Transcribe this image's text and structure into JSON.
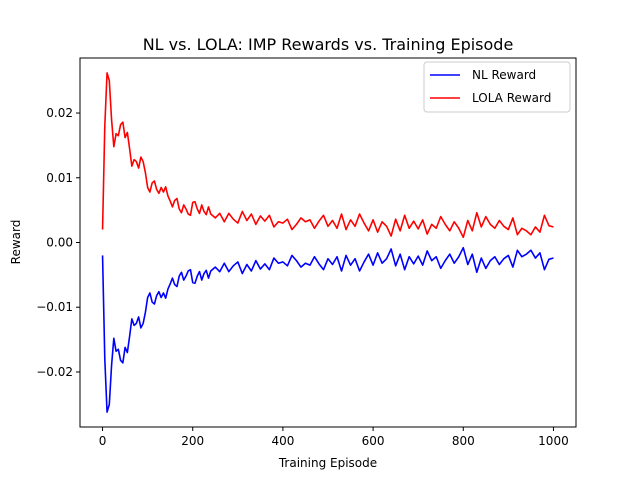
{
  "chart_data": {
    "type": "line",
    "title": "NL vs. LOLA: IMP Rewards vs. Training Episode",
    "xlabel": "Training Episode",
    "ylabel": "Reward",
    "xlim": [
      -50,
      1050
    ],
    "ylim": [
      -0.0285,
      0.0285
    ],
    "xticks": [
      0,
      200,
      400,
      600,
      800,
      1000
    ],
    "yticks": [
      -0.02,
      -0.01,
      0.0,
      0.01,
      0.02
    ],
    "ytick_labels": [
      "−0.02",
      "−0.01",
      "0.00",
      "0.01",
      "0.02"
    ],
    "grid": false,
    "legend": "top-right",
    "series": [
      {
        "name": "NL Reward",
        "color": "#0000ff",
        "x": [
          0,
          5,
          10,
          15,
          20,
          25,
          30,
          35,
          40,
          45,
          50,
          55,
          60,
          65,
          70,
          75,
          80,
          85,
          90,
          95,
          100,
          105,
          110,
          115,
          120,
          125,
          130,
          135,
          140,
          145,
          150,
          155,
          160,
          165,
          170,
          175,
          180,
          185,
          190,
          195,
          200,
          205,
          210,
          215,
          220,
          225,
          230,
          235,
          240,
          250,
          260,
          270,
          280,
          290,
          300,
          310,
          320,
          330,
          340,
          350,
          360,
          370,
          380,
          390,
          400,
          410,
          420,
          430,
          440,
          450,
          460,
          470,
          480,
          490,
          500,
          510,
          520,
          530,
          540,
          550,
          560,
          570,
          580,
          590,
          600,
          610,
          620,
          630,
          640,
          650,
          660,
          670,
          680,
          690,
          700,
          710,
          720,
          730,
          740,
          750,
          760,
          770,
          780,
          790,
          800,
          810,
          820,
          830,
          840,
          850,
          860,
          870,
          880,
          890,
          900,
          910,
          920,
          930,
          940,
          950,
          960,
          970,
          980,
          990,
          1000
        ],
        "values": [
          -0.002,
          -0.018,
          -0.0262,
          -0.025,
          -0.019,
          -0.0148,
          -0.0168,
          -0.0165,
          -0.0182,
          -0.0186,
          -0.0162,
          -0.017,
          -0.0145,
          -0.0118,
          -0.0128,
          -0.0125,
          -0.0115,
          -0.0132,
          -0.0125,
          -0.0108,
          -0.0085,
          -0.0078,
          -0.0092,
          -0.0095,
          -0.0082,
          -0.0076,
          -0.0085,
          -0.0078,
          -0.0086,
          -0.0072,
          -0.0064,
          -0.0055,
          -0.0065,
          -0.0068,
          -0.0052,
          -0.0046,
          -0.0058,
          -0.0052,
          -0.0044,
          -0.0042,
          -0.0062,
          -0.0063,
          -0.0052,
          -0.0045,
          -0.0058,
          -0.0048,
          -0.0043,
          -0.0055,
          -0.0044,
          -0.0038,
          -0.0045,
          -0.0032,
          -0.0045,
          -0.0036,
          -0.003,
          -0.0048,
          -0.0034,
          -0.0044,
          -0.0028,
          -0.0041,
          -0.0033,
          -0.0042,
          -0.0024,
          -0.0032,
          -0.003,
          -0.0036,
          -0.002,
          -0.0028,
          -0.0038,
          -0.0032,
          -0.0035,
          -0.0022,
          -0.0033,
          -0.0042,
          -0.0025,
          -0.0034,
          -0.0022,
          -0.0044,
          -0.002,
          -0.0035,
          -0.0025,
          -0.0044,
          -0.003,
          -0.0018,
          -0.0035,
          -0.0016,
          -0.0032,
          -0.0025,
          -0.001,
          -0.0036,
          -0.0018,
          -0.0042,
          -0.0022,
          -0.0033,
          -0.0021,
          -0.0035,
          -0.0013,
          -0.0028,
          -0.0022,
          -0.004,
          -0.0028,
          -0.0018,
          -0.0032,
          -0.0022,
          -0.0008,
          -0.0034,
          -0.0018,
          -0.0046,
          -0.0024,
          -0.004,
          -0.0028,
          -0.0022,
          -0.0034,
          -0.0025,
          -0.002,
          -0.0038,
          -0.0012,
          -0.0022,
          -0.0018,
          -0.0012,
          -0.0024,
          -0.0016,
          -0.0042,
          -0.0026,
          -0.0024
        ]
      },
      {
        "name": "LOLA Reward",
        "color": "#ff0000",
        "x": [
          0,
          5,
          10,
          15,
          20,
          25,
          30,
          35,
          40,
          45,
          50,
          55,
          60,
          65,
          70,
          75,
          80,
          85,
          90,
          95,
          100,
          105,
          110,
          115,
          120,
          125,
          130,
          135,
          140,
          145,
          150,
          155,
          160,
          165,
          170,
          175,
          180,
          185,
          190,
          195,
          200,
          205,
          210,
          215,
          220,
          225,
          230,
          235,
          240,
          250,
          260,
          270,
          280,
          290,
          300,
          310,
          320,
          330,
          340,
          350,
          360,
          370,
          380,
          390,
          400,
          410,
          420,
          430,
          440,
          450,
          460,
          470,
          480,
          490,
          500,
          510,
          520,
          530,
          540,
          550,
          560,
          570,
          580,
          590,
          600,
          610,
          620,
          630,
          640,
          650,
          660,
          670,
          680,
          690,
          700,
          710,
          720,
          730,
          740,
          750,
          760,
          770,
          780,
          790,
          800,
          810,
          820,
          830,
          840,
          850,
          860,
          870,
          880,
          890,
          900,
          910,
          920,
          930,
          940,
          950,
          960,
          970,
          980,
          990,
          1000
        ],
        "values": [
          0.002,
          0.018,
          0.0262,
          0.025,
          0.019,
          0.0148,
          0.0168,
          0.0165,
          0.0182,
          0.0186,
          0.0162,
          0.017,
          0.0145,
          0.0118,
          0.0128,
          0.0125,
          0.0115,
          0.0132,
          0.0125,
          0.0108,
          0.0085,
          0.0078,
          0.0092,
          0.0095,
          0.0082,
          0.0076,
          0.0085,
          0.0078,
          0.0086,
          0.0072,
          0.0064,
          0.0055,
          0.0065,
          0.0068,
          0.0052,
          0.0046,
          0.0058,
          0.0052,
          0.0044,
          0.0042,
          0.0062,
          0.0063,
          0.0052,
          0.0045,
          0.0058,
          0.0048,
          0.0043,
          0.0055,
          0.0044,
          0.0038,
          0.0045,
          0.0032,
          0.0045,
          0.0036,
          0.003,
          0.0048,
          0.0034,
          0.0044,
          0.0028,
          0.0041,
          0.0033,
          0.0042,
          0.0024,
          0.0032,
          0.003,
          0.0036,
          0.002,
          0.0028,
          0.0038,
          0.0032,
          0.0035,
          0.0022,
          0.0033,
          0.0042,
          0.0025,
          0.0034,
          0.0022,
          0.0044,
          0.002,
          0.0035,
          0.0025,
          0.0044,
          0.003,
          0.0018,
          0.0035,
          0.0016,
          0.0032,
          0.0025,
          0.001,
          0.0036,
          0.0018,
          0.0042,
          0.0022,
          0.0033,
          0.0021,
          0.0035,
          0.0013,
          0.0028,
          0.0022,
          0.004,
          0.0028,
          0.0018,
          0.0032,
          0.0022,
          0.0008,
          0.0034,
          0.0018,
          0.0046,
          0.0024,
          0.004,
          0.0028,
          0.0022,
          0.0034,
          0.0025,
          0.002,
          0.0038,
          0.0012,
          0.0022,
          0.0018,
          0.0012,
          0.0024,
          0.0016,
          0.0042,
          0.0026,
          0.0024
        ]
      }
    ]
  }
}
